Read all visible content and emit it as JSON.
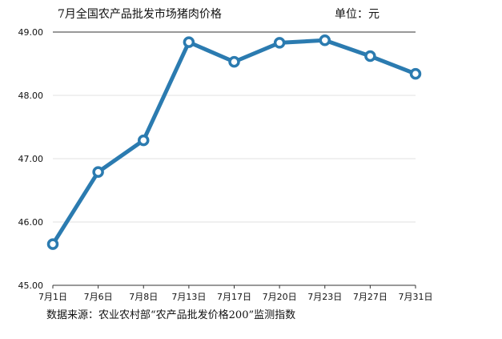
{
  "chart_data": {
    "type": "line",
    "title": "7月全国农产品批发市场猪肉价格",
    "unit_label": "单位：元",
    "source_note": "数据来源：农业农村部“农产品批发价格200”监测指数",
    "categories": [
      "7月1日",
      "7月6日",
      "7月8日",
      "7月13日",
      "7月17日",
      "7月20日",
      "7月23日",
      "7月27日",
      "7月31日"
    ],
    "values": [
      45.65,
      46.79,
      47.29,
      48.84,
      48.53,
      48.83,
      48.87,
      48.62,
      48.34
    ],
    "y_ticks": [
      "45.00",
      "46.00",
      "47.00",
      "48.00",
      "49.00"
    ],
    "ylim": [
      45,
      49
    ],
    "grid": true,
    "legend": "none",
    "line_color": "#2b7bb0",
    "marker_fill": "#ffffff"
  }
}
